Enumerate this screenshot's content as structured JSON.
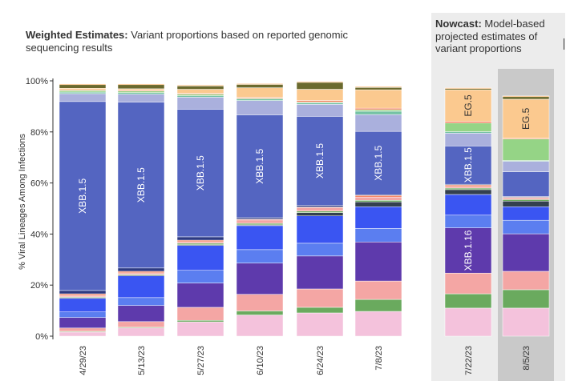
{
  "header": {
    "title_bold": "Weighted Estimates:",
    "title_rest": "Variant proportions based on reported genomic sequencing results",
    "nowcast_bold": "Nowcast:",
    "nowcast_rest": "Model-based projected estimates of variant proportions"
  },
  "colors": {
    "nowcast_panel_bg": "#ececec",
    "selected_column_bg": "#c9c9c9",
    "axis_line": "#333333"
  },
  "chart_data": {
    "type": "bar",
    "stacked": true,
    "ylabel": "% Viral Lineages Among Infections",
    "ylim": [
      0,
      100
    ],
    "yticks": [
      0,
      20,
      40,
      60,
      80,
      100
    ],
    "ytick_labels": [
      "0%",
      "20%",
      "40%",
      "60%",
      "80%",
      "100%"
    ],
    "grid": false,
    "legend": "none",
    "categories": [
      "4/29/23",
      "5/13/23",
      "5/27/23",
      "6/10/23",
      "6/24/23",
      "7/8/23",
      "7/22/23",
      "8/5/23"
    ],
    "nowcast_categories": [
      "7/22/23",
      "8/5/23"
    ],
    "selected_category": "8/5/23",
    "series": [
      {
        "color": "#f4c2dc",
        "values": [
          1.6,
          3.2,
          5.6,
          8.3,
          9.1,
          9.7,
          11.0,
          11.0
        ]
      },
      {
        "color": "#6aaa5e",
        "values": [
          0.3,
          0.3,
          0.6,
          1.6,
          2.2,
          4.7,
          5.6,
          7.2
        ]
      },
      {
        "color": "#f4a6a4",
        "values": [
          1.3,
          2.2,
          5.1,
          6.5,
          7.2,
          7.2,
          8.1,
          7.2
        ]
      },
      {
        "color": "#5e3aac",
        "values": [
          4.1,
          6.3,
          9.5,
          12.2,
          12.9,
          15.3,
          17.7,
          14.7
        ]
      },
      {
        "color": "#5b7ef0",
        "values": [
          2.2,
          3.1,
          5.0,
          5.3,
          5.0,
          5.3,
          5.0,
          5.3
        ]
      },
      {
        "color": "#3a55f2",
        "values": [
          5.3,
          8.5,
          9.7,
          9.4,
          10.7,
          8.5,
          8.1,
          5.3
        ]
      },
      {
        "color": "#33404e",
        "values": [
          0.3,
          0.3,
          0.3,
          0.3,
          1.3,
          1.9,
          1.9,
          2.2
        ]
      },
      {
        "color": "#6aaa5e",
        "values": [
          0.3,
          0.3,
          0.6,
          0.6,
          0.6,
          0.6,
          0.6,
          0.6
        ]
      },
      {
        "color": "#f4a6a4",
        "values": [
          0.6,
          0.6,
          0.6,
          1.3,
          1.3,
          1.3,
          0.6,
          0.6
        ]
      },
      {
        "color": "#f47d5b",
        "values": [
          0.6,
          0.6,
          0.6,
          0.3,
          0.3,
          0.6,
          0.6,
          0.3
        ]
      },
      {
        "color": "#2d3a82",
        "values": [
          1.3,
          1.3,
          1.3,
          0.6,
          0.6,
          0.3,
          0.3,
          0.3
        ]
      },
      {
        "name": "XBB.1.5",
        "color": "#5465c1",
        "values": [
          74.0,
          65.0,
          50.0,
          40.3,
          34.9,
          24.8,
          15.0,
          9.7
        ]
      },
      {
        "color": "#aab0dd",
        "values": [
          3.1,
          3.1,
          4.7,
          5.6,
          4.7,
          6.6,
          5.0,
          4.1
        ]
      },
      {
        "color": "#74c2a4",
        "values": [
          0.6,
          0.6,
          0.6,
          0.6,
          0.6,
          1.3,
          0.6,
          0.3
        ]
      },
      {
        "color": "#95d486",
        "values": [
          0.6,
          0.6,
          0.6,
          0.3,
          0.3,
          0.6,
          3.4,
          8.4
        ]
      },
      {
        "color": "#f57e5c",
        "values": [
          0.3,
          0.3,
          0.3,
          0.3,
          0.6,
          0.6,
          0.6,
          0.3
        ]
      },
      {
        "name": "EG.5",
        "color": "#fbc98f",
        "values": [
          0.6,
          0.6,
          1.6,
          3.8,
          4.4,
          7.2,
          12.4,
          15.3
        ]
      },
      {
        "color": "#6b6a2e",
        "values": [
          1.4,
          1.6,
          1.3,
          1.3,
          2.7,
          0.9,
          0.5,
          1.0
        ]
      },
      {
        "color": "#ff9933",
        "values": [
          0.3,
          0.3,
          0.3,
          0.3,
          0.3,
          0.3,
          0.3,
          0.3
        ]
      }
    ],
    "bar_labels": [
      {
        "category": "4/29/23",
        "series": "XBB.1.5",
        "text": "XBB.1.5"
      },
      {
        "category": "5/13/23",
        "series": "XBB.1.5",
        "text": "XBB.1.5"
      },
      {
        "category": "5/27/23",
        "series": "XBB.1.5",
        "text": "XBB.1.5"
      },
      {
        "category": "6/10/23",
        "series": "XBB.1.5",
        "text": "XBB.1.5"
      },
      {
        "category": "6/24/23",
        "series": "XBB.1.5",
        "text": "XBB.1.5"
      },
      {
        "category": "7/8/23",
        "series": "XBB.1.5",
        "text": "XBB.1.5"
      },
      {
        "category": "7/22/23",
        "series": "XBB.1.5",
        "text": "XBB.1.5"
      },
      {
        "category": "7/22/23",
        "series_index": 3,
        "text": "XBB.1.16"
      },
      {
        "category": "7/22/23",
        "series": "EG.5",
        "text": "EG.5"
      },
      {
        "category": "8/5/23",
        "series": "EG.5",
        "text": "EG.5"
      }
    ]
  }
}
